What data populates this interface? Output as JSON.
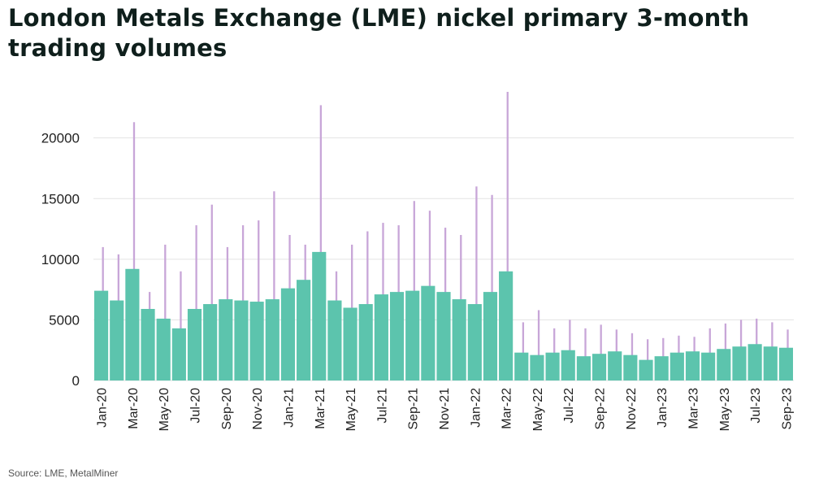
{
  "header": {
    "title": "London Metals Exchange (LME) nickel primary 3-month trading volumes"
  },
  "footer": {
    "source": "Source: LME, MetalMiner"
  },
  "colors": {
    "bar": "#5cc4ad",
    "spike": "#c8a6d8",
    "grid": "#e3e3e3",
    "title": "#0f1f1c"
  },
  "chart_data": {
    "type": "bar",
    "title": "London Metals Exchange (LME) nickel primary 3-month trading volumes",
    "xlabel": "",
    "ylabel": "",
    "ylim": [
      0,
      24000
    ],
    "yticks": [
      0,
      5000,
      10000,
      15000,
      20000
    ],
    "grid": true,
    "legend": "none",
    "x_tick_labels": [
      "Jan-20",
      "Mar-20",
      "May-20",
      "Jul-20",
      "Sep-20",
      "Nov-20",
      "Jan-21",
      "Mar-21",
      "May-21",
      "Jul-21",
      "Sep-21",
      "Nov-21",
      "Jan-22",
      "Mar-22",
      "May-22",
      "Jul-22",
      "Sep-22",
      "Nov-22",
      "Jan-23",
      "Mar-23",
      "May-23",
      "Jul-23",
      "Sep-23"
    ],
    "categories": [
      "Jan-20",
      "Feb-20",
      "Mar-20",
      "Apr-20",
      "May-20",
      "Jun-20",
      "Jul-20",
      "Aug-20",
      "Sep-20",
      "Oct-20",
      "Nov-20",
      "Dec-20",
      "Jan-21",
      "Feb-21",
      "Mar-21",
      "Apr-21",
      "May-21",
      "Jun-21",
      "Jul-21",
      "Aug-21",
      "Sep-21",
      "Oct-21",
      "Nov-21",
      "Dec-21",
      "Jan-22",
      "Feb-22",
      "Mar-22",
      "Apr-22",
      "May-22",
      "Jun-22",
      "Jul-22",
      "Aug-22",
      "Sep-22",
      "Oct-22",
      "Nov-22",
      "Dec-22",
      "Jan-23",
      "Feb-23",
      "Mar-23",
      "Apr-23",
      "May-23",
      "Jun-23",
      "Jul-23",
      "Aug-23",
      "Sep-23"
    ],
    "series": [
      {
        "values": [
          7400,
          6600,
          9200,
          5900,
          5100,
          4300,
          5900,
          6300,
          6700,
          6600,
          6500,
          6700,
          7600,
          8300,
          10600,
          6600,
          6000,
          6300,
          7100,
          7300,
          7400,
          7800,
          7300,
          6700,
          6300,
          7300,
          9000,
          2300,
          2100,
          2300,
          2500,
          2000,
          2200,
          2400,
          2100,
          1700,
          2000,
          2300,
          2400,
          2300,
          2600,
          2800,
          3000,
          2800,
          2700
        ]
      },
      {
        "values": [
          11000,
          10400,
          21300,
          7300,
          11200,
          9000,
          12800,
          14500,
          11000,
          12800,
          13200,
          15600,
          12000,
          11200,
          22700,
          9000,
          11200,
          12300,
          13000,
          12800,
          14800,
          14000,
          12600,
          12000,
          16000,
          15300,
          23800,
          4800,
          5800,
          4300,
          5000,
          4300,
          4600,
          4200,
          3900,
          3400,
          3500,
          3700,
          3600,
          4300,
          4700,
          5000,
          5100,
          4800,
          4200
        ]
      }
    ]
  }
}
